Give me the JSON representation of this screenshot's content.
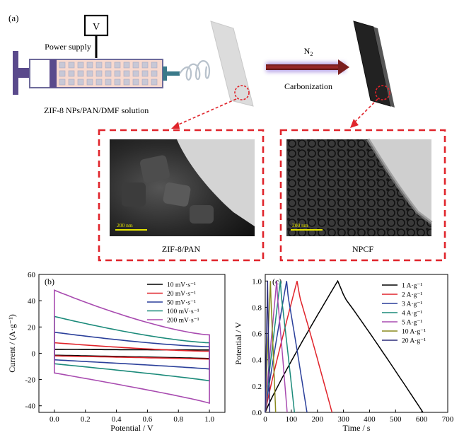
{
  "figure": {
    "panel_a_label": "(a)",
    "panel_b_label": "(b)",
    "panel_c_label": "(c)",
    "power_supply_symbol": "V",
    "power_supply_label": "Power supply",
    "solution_label": "ZIF-8 NPs/PAN/DMF solution",
    "gas": "N",
    "gas_subscript": "2",
    "process_label": "Carbonization",
    "tem_left": {
      "scale": "200 nm",
      "caption": "ZIF-8/PAN"
    },
    "tem_right": {
      "scale": "200 nm",
      "caption": "NPCF"
    }
  },
  "chart_data": [
    {
      "type": "line",
      "panel": "(b)",
      "xlabel": "Potential / V",
      "ylabel": "Current / (A·g⁻¹)",
      "xlim": [
        -0.1,
        1.1
      ],
      "ylim": [
        -45,
        60
      ],
      "xticks": [
        "0.0",
        "0.2",
        "0.4",
        "0.6",
        "0.8",
        "1.0"
      ],
      "yticks": [
        "-40",
        "-20",
        "0",
        "20",
        "40",
        "60"
      ],
      "legend_position": "top-right",
      "series": [
        {
          "name": "10 mV·s⁻¹",
          "color": "#000000",
          "top_start": 3,
          "top_end": 2.5,
          "bottom_start": -1.5,
          "bottom_end": -4
        },
        {
          "name": "20 mV·s⁻¹",
          "color": "#e0242b",
          "top_start": 8,
          "top_end": 1.5,
          "bottom_start": -2,
          "bottom_end": -4.5
        },
        {
          "name": "50 mV·s⁻¹",
          "color": "#2a3f9a",
          "top_start": 16,
          "top_end": 5,
          "bottom_start": -5,
          "bottom_end": -12
        },
        {
          "name": "100 mV·s⁻¹",
          "color": "#1b8a7a",
          "top_start": 28,
          "top_end": 8,
          "bottom_start": -8,
          "bottom_end": -21
        },
        {
          "name": "200 mV·s⁻¹",
          "color": "#a84bb0",
          "top_start": 48,
          "top_end": 14,
          "bottom_start": -15,
          "bottom_end": -38
        }
      ]
    },
    {
      "type": "line",
      "panel": "(c)",
      "xlabel": "Time / s",
      "ylabel": "Potential / V",
      "xlim": [
        0,
        700
      ],
      "ylim": [
        0,
        1.05
      ],
      "xticks": [
        "0",
        "100",
        "200",
        "300",
        "400",
        "500",
        "600",
        "700"
      ],
      "yticks": [
        "0.0",
        "0.2",
        "0.4",
        "0.6",
        "0.8",
        "1.0"
      ],
      "legend_position": "top-right",
      "series": [
        {
          "name": "1 A·g⁻¹",
          "color": "#000000",
          "charge_end": 278,
          "discharge_end": 605
        },
        {
          "name": "2 A·g⁻¹",
          "color": "#e0242b",
          "charge_end": 122,
          "discharge_end": 256
        },
        {
          "name": "3 A·g⁻¹",
          "color": "#2a3f9a",
          "charge_end": 82,
          "discharge_end": 160
        },
        {
          "name": "4 A·g⁻¹",
          "color": "#1b8a7a",
          "charge_end": 58,
          "discharge_end": 112
        },
        {
          "name": "5 A·g⁻¹",
          "color": "#a84bb0",
          "charge_end": 44,
          "discharge_end": 84
        },
        {
          "name": "10 A·g⁻¹",
          "color": "#8a8a1e",
          "charge_end": 20,
          "discharge_end": 40
        },
        {
          "name": "20 A·g⁻¹",
          "color": "#2b2b7a",
          "charge_end": 9,
          "discharge_end": 17
        }
      ]
    }
  ]
}
